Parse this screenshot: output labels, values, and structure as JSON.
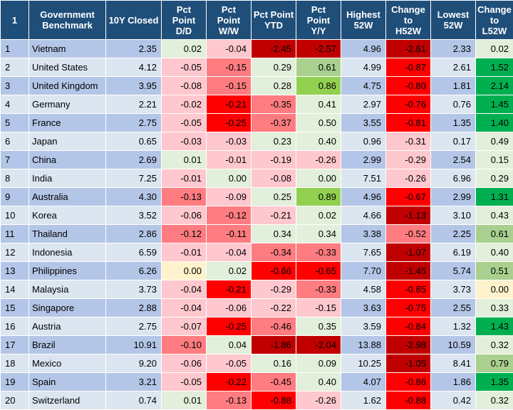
{
  "table": {
    "headers": [
      "1",
      "Government\nBenchmark",
      "10Y Closed",
      "Pct\nPoint\nD/D",
      "Pct\nPoint\nW/W",
      "Pct Point\nYTD",
      "Pct\nPoint\nY/Y",
      "Highest\n52W",
      "Change\nto\nH52W",
      "Lowest\n52W",
      "Change\nto\nL52W"
    ],
    "colors": {
      "header_bg": "#1f4e79",
      "row_odd": "#b4c6e7",
      "row_even": "#dce6f1",
      "strong_red": "#ff0000",
      "dark_red": "#c00000",
      "mid_red": "#ff7c80",
      "light_red": "#ffc7ce",
      "neutral_yellow": "#fff2cc",
      "light_green": "#e2efda",
      "mid_green": "#a9d08e",
      "bright_green": "#92d050",
      "strong_green": "#00b050"
    },
    "rows": [
      {
        "idx": "1",
        "country": "Vietnam",
        "closed": "2.35",
        "dd": "0.02",
        "ww": "-0.04",
        "ytd": "-2.45",
        "yy": "-2.57",
        "h52": "4.96",
        "ch52": "-2.61",
        "l52": "2.33",
        "cl52": "0.02"
      },
      {
        "idx": "2",
        "country": "United States",
        "closed": "4.12",
        "dd": "-0.05",
        "ww": "-0.15",
        "ytd": "0.29",
        "yy": "0.61",
        "h52": "4.99",
        "ch52": "-0.87",
        "l52": "2.61",
        "cl52": "1.52"
      },
      {
        "idx": "3",
        "country": "United Kingdom",
        "closed": "3.95",
        "dd": "-0.08",
        "ww": "-0.15",
        "ytd": "0.28",
        "yy": "0.86",
        "h52": "4.75",
        "ch52": "-0.80",
        "l52": "1.81",
        "cl52": "2.14"
      },
      {
        "idx": "4",
        "country": "Germany",
        "closed": "2.21",
        "dd": "-0.02",
        "ww": "-0.21",
        "ytd": "-0.35",
        "yy": "0.41",
        "h52": "2.97",
        "ch52": "-0.76",
        "l52": "0.76",
        "cl52": "1.45"
      },
      {
        "idx": "5",
        "country": "France",
        "closed": "2.75",
        "dd": "-0.05",
        "ww": "-0.25",
        "ytd": "-0.37",
        "yy": "0.50",
        "h52": "3.55",
        "ch52": "-0.81",
        "l52": "1.35",
        "cl52": "1.40"
      },
      {
        "idx": "6",
        "country": "Japan",
        "closed": "0.65",
        "dd": "-0.03",
        "ww": "-0.03",
        "ytd": "0.23",
        "yy": "0.40",
        "h52": "0.96",
        "ch52": "-0.31",
        "l52": "0.17",
        "cl52": "0.49"
      },
      {
        "idx": "7",
        "country": "China",
        "closed": "2.69",
        "dd": "0.01",
        "ww": "-0.01",
        "ytd": "-0.19",
        "yy": "-0.26",
        "h52": "2.99",
        "ch52": "-0.29",
        "l52": "2.54",
        "cl52": "0.15"
      },
      {
        "idx": "8",
        "country": "India",
        "closed": "7.25",
        "dd": "-0.01",
        "ww": "0.00",
        "ytd": "-0.08",
        "yy": "0.00",
        "h52": "7.51",
        "ch52": "-0.26",
        "l52": "6.96",
        "cl52": "0.29"
      },
      {
        "idx": "9",
        "country": "Australia",
        "closed": "4.30",
        "dd": "-0.13",
        "ww": "-0.09",
        "ytd": "0.25",
        "yy": "0.89",
        "h52": "4.96",
        "ch52": "-0.67",
        "l52": "2.99",
        "cl52": "1.31"
      },
      {
        "idx": "10",
        "country": "Korea",
        "closed": "3.52",
        "dd": "-0.06",
        "ww": "-0.12",
        "ytd": "-0.21",
        "yy": "0.02",
        "h52": "4.66",
        "ch52": "-1.13",
        "l52": "3.10",
        "cl52": "0.43"
      },
      {
        "idx": "11",
        "country": "Thailand",
        "closed": "2.86",
        "dd": "-0.12",
        "ww": "-0.11",
        "ytd": "0.34",
        "yy": "0.34",
        "h52": "3.38",
        "ch52": "-0.52",
        "l52": "2.25",
        "cl52": "0.61"
      },
      {
        "idx": "12",
        "country": "Indonesia",
        "closed": "6.59",
        "dd": "-0.01",
        "ww": "-0.04",
        "ytd": "-0.34",
        "yy": "-0.33",
        "h52": "7.65",
        "ch52": "-1.07",
        "l52": "6.19",
        "cl52": "0.40"
      },
      {
        "idx": "13",
        "country": "Philippines",
        "closed": "6.26",
        "dd": "0.00",
        "ww": "0.02",
        "ytd": "-0.66",
        "yy": "-0.65",
        "h52": "7.70",
        "ch52": "-1.45",
        "l52": "5.74",
        "cl52": "0.51"
      },
      {
        "idx": "14",
        "country": "Malaysia",
        "closed": "3.73",
        "dd": "-0.04",
        "ww": "-0.21",
        "ytd": "-0.29",
        "yy": "-0.33",
        "h52": "4.58",
        "ch52": "-0.85",
        "l52": "3.73",
        "cl52": "0.00"
      },
      {
        "idx": "15",
        "country": "Singapore",
        "closed": "2.88",
        "dd": "-0.04",
        "ww": "-0.06",
        "ytd": "-0.22",
        "yy": "-0.15",
        "h52": "3.63",
        "ch52": "-0.75",
        "l52": "2.55",
        "cl52": "0.33"
      },
      {
        "idx": "16",
        "country": "Austria",
        "closed": "2.75",
        "dd": "-0.07",
        "ww": "-0.25",
        "ytd": "-0.46",
        "yy": "0.35",
        "h52": "3.59",
        "ch52": "-0.84",
        "l52": "1.32",
        "cl52": "1.43"
      },
      {
        "idx": "17",
        "country": "Brazil",
        "closed": "10.91",
        "dd": "-0.10",
        "ww": "0.04",
        "ytd": "-1.86",
        "yy": "-2.04",
        "h52": "13.88",
        "ch52": "-2.98",
        "l52": "10.59",
        "cl52": "0.32"
      },
      {
        "idx": "18",
        "country": "Mexico",
        "closed": "9.20",
        "dd": "-0.06",
        "ww": "-0.05",
        "ytd": "0.16",
        "yy": "0.09",
        "h52": "10.25",
        "ch52": "-1.05",
        "l52": "8.41",
        "cl52": "0.79"
      },
      {
        "idx": "19",
        "country": "Spain",
        "closed": "3.21",
        "dd": "-0.05",
        "ww": "-0.22",
        "ytd": "-0.45",
        "yy": "0.40",
        "h52": "4.07",
        "ch52": "-0.86",
        "l52": "1.86",
        "cl52": "1.35"
      },
      {
        "idx": "20",
        "country": "Switzerland",
        "closed": "0.74",
        "dd": "0.01",
        "ww": "-0.13",
        "ytd": "-0.88",
        "yy": "-0.26",
        "h52": "1.62",
        "ch52": "-0.88",
        "l52": "0.42",
        "cl52": "0.32"
      }
    ]
  }
}
